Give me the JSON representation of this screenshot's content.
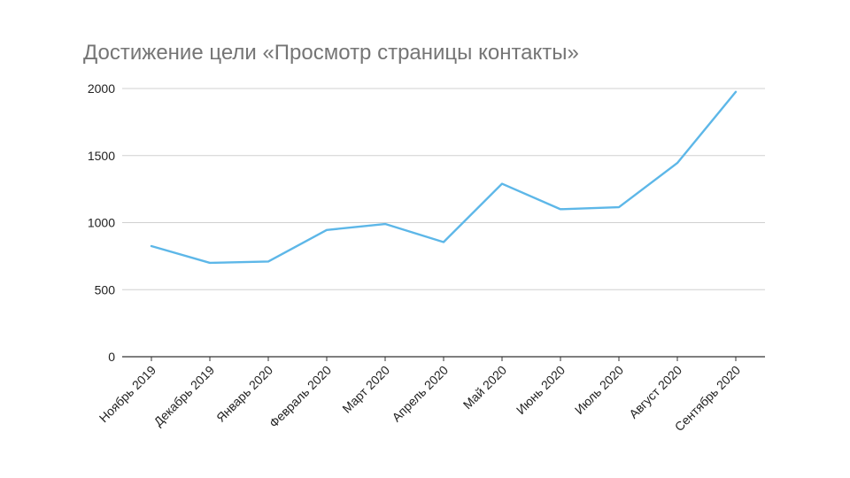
{
  "chart_data": {
    "type": "line",
    "title": "Достижение цели «Просмотр страницы контакты»",
    "xlabel": "",
    "ylabel": "",
    "categories": [
      "Ноябрь 2019",
      "Декабрь 2019",
      "Январь 2020",
      "Февраль 2020",
      "Март 2020",
      "Апрель 2020",
      "Май 2020",
      "Июнь 2020",
      "Июль 2020",
      "Август 2020",
      "Сентябрь 2020"
    ],
    "series": [
      {
        "values": [
          825,
          700,
          710,
          945,
          990,
          855,
          1290,
          1100,
          1115,
          1445,
          1975
        ],
        "color": "#5db7e8"
      }
    ],
    "ylim": [
      0,
      2000
    ],
    "yticks": [
      0,
      500,
      1000,
      1500,
      2000
    ],
    "grid": true,
    "legend": "none"
  }
}
